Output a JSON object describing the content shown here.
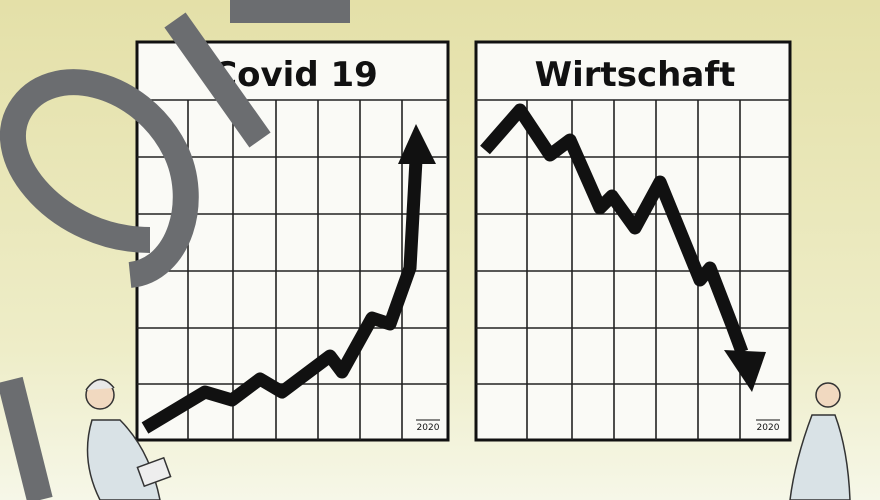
{
  "panels": [
    {
      "title": "Covid 19",
      "year": "2020"
    },
    {
      "title": "Wirtschaft",
      "year": "2020"
    }
  ]
}
